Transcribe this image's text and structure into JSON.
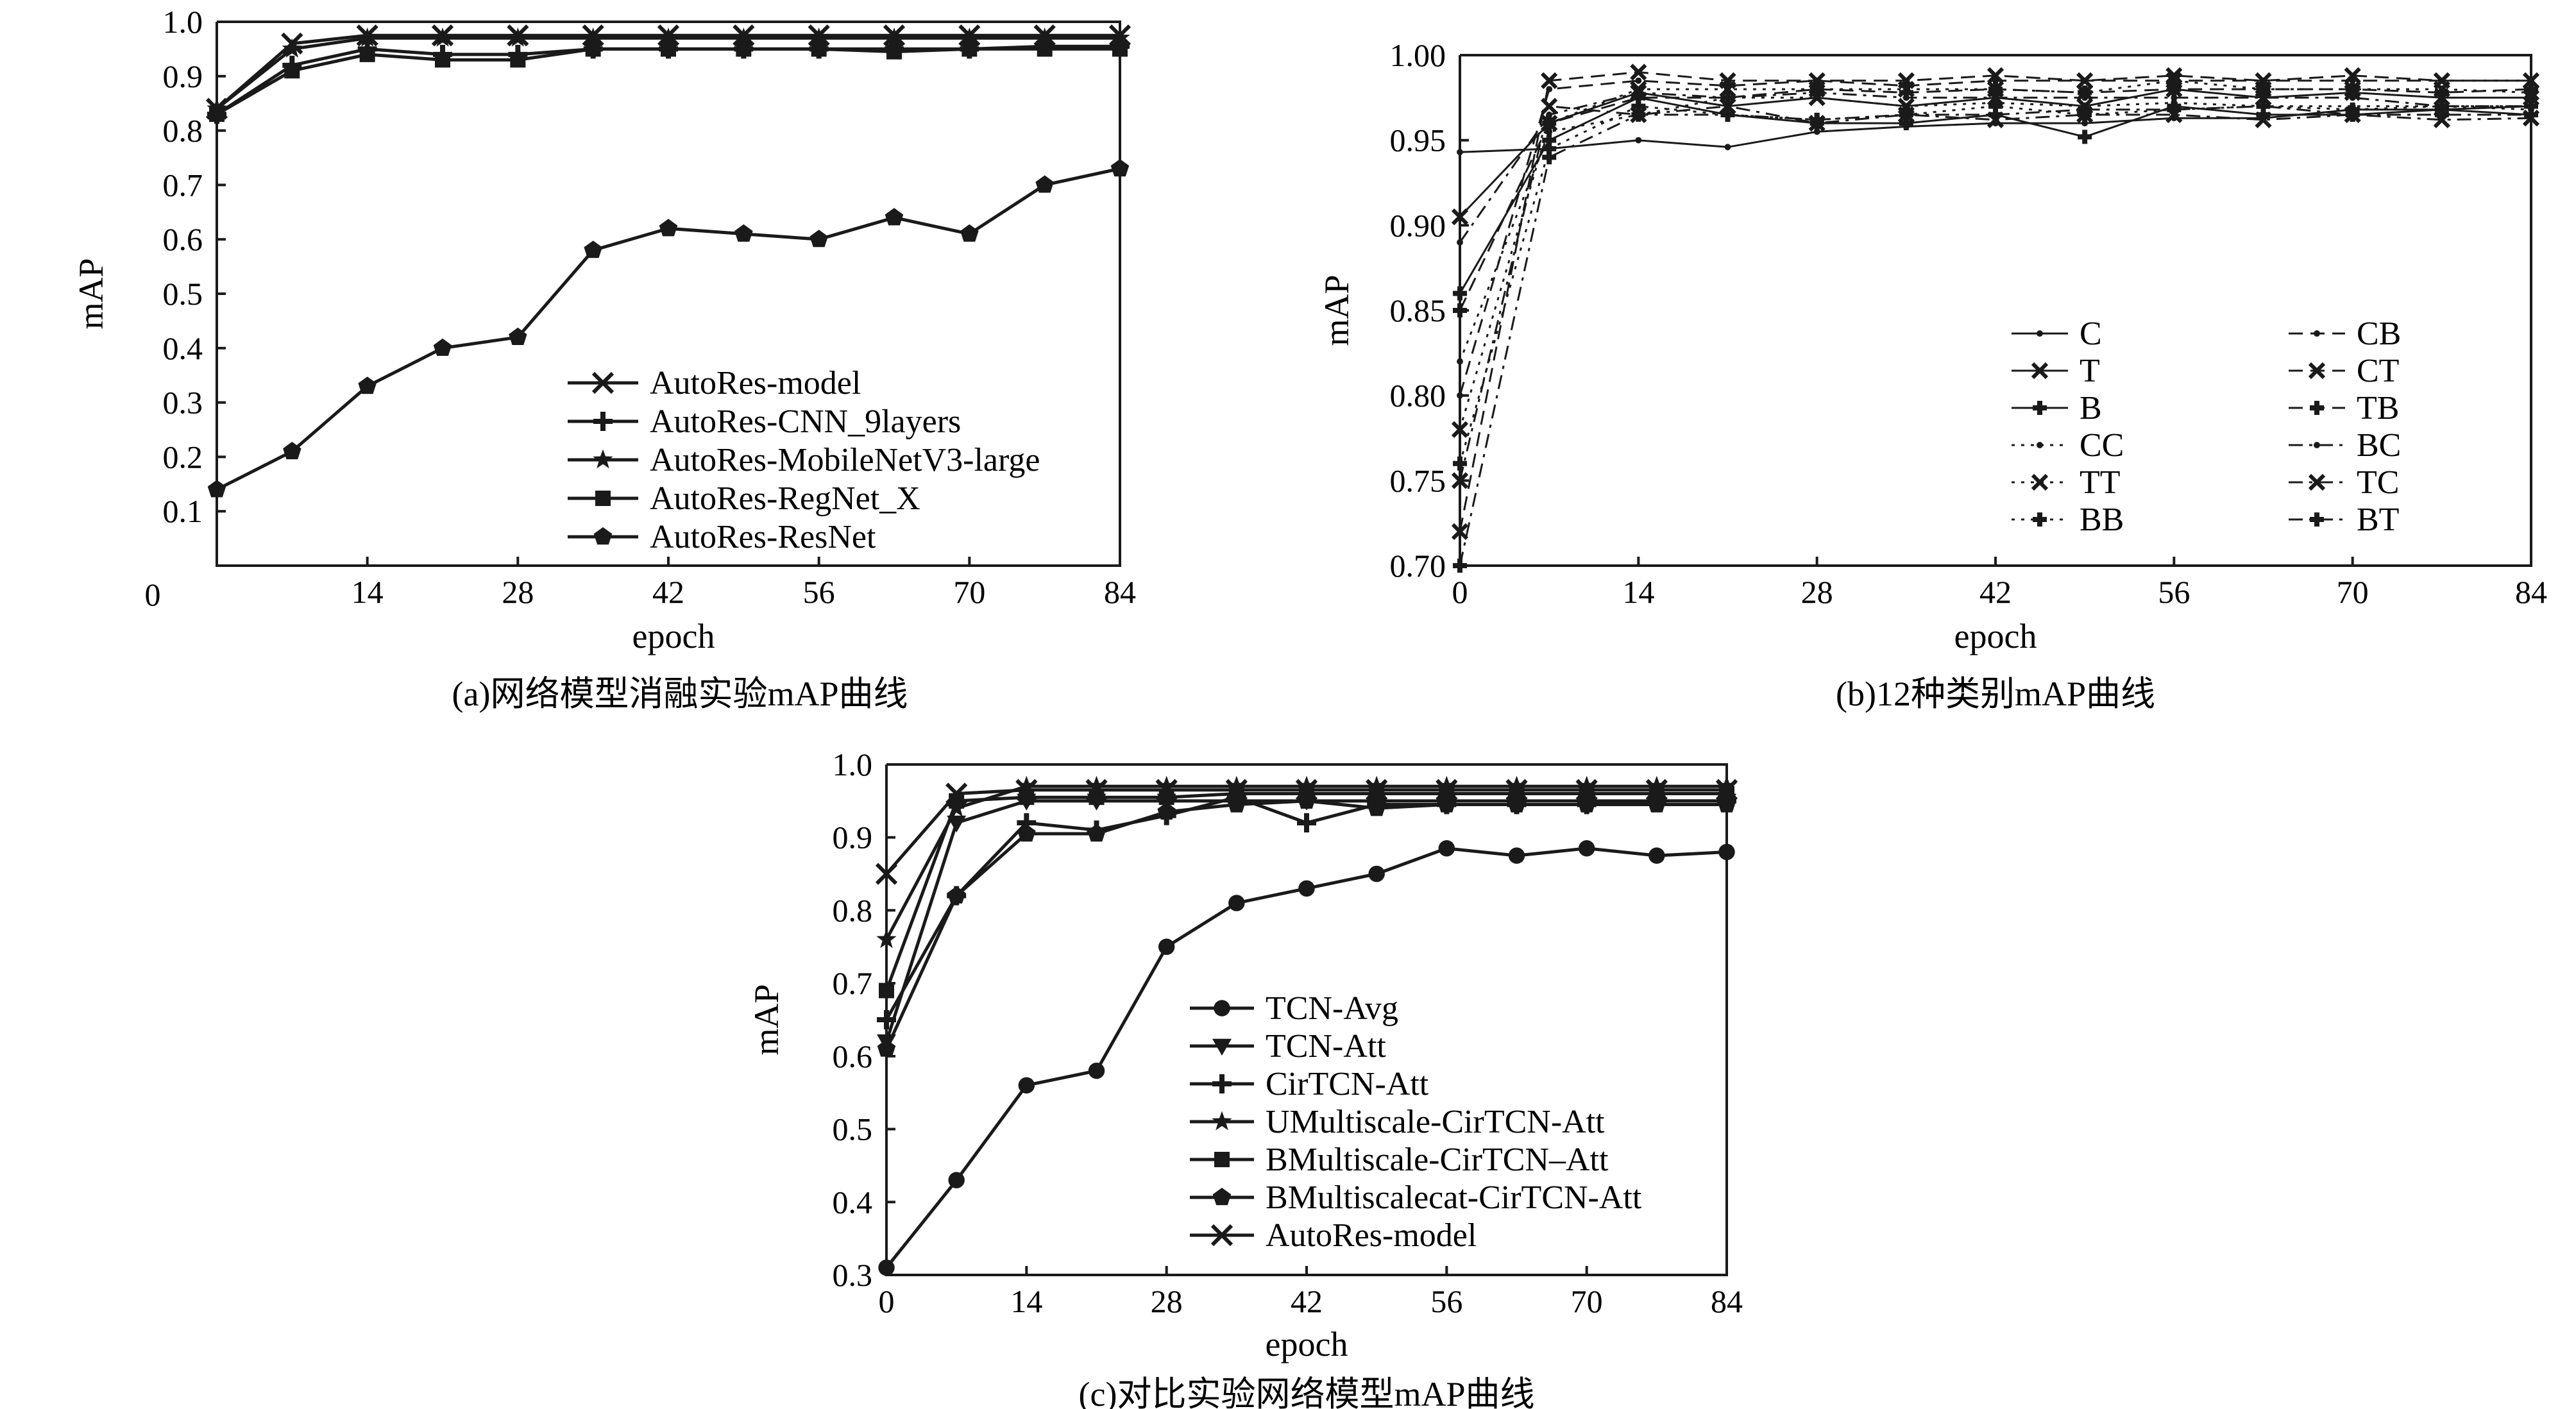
{
  "colors": {
    "ink": "#1a1a1a",
    "background": "#ffffff"
  },
  "chart_data": [
    {
      "id": "a",
      "type": "line",
      "caption": "(a)网络模型消融实验mAP曲线",
      "xlabel": "epoch",
      "ylabel": "mAP",
      "xlim": [
        0,
        84
      ],
      "ylim": [
        0,
        1.0
      ],
      "xticks": [
        0,
        14,
        28,
        42,
        56,
        70,
        84
      ],
      "yticks": [
        0.1,
        0.2,
        0.3,
        0.4,
        0.5,
        0.6,
        0.7,
        0.8,
        0.9,
        1.0
      ],
      "ytick_labels": [
        "0.1",
        "0.2",
        "0.3",
        "0.4",
        "0.5",
        "0.6",
        "0.7",
        "0.8",
        "0.9",
        "1.0"
      ],
      "grid": false,
      "legend_position": "bottom-right",
      "x": [
        0,
        7,
        14,
        21,
        28,
        35,
        42,
        49,
        56,
        63,
        70,
        77,
        84
      ],
      "series": [
        {
          "name": "AutoRes-model",
          "marker": "x",
          "dash": "solid",
          "values": [
            0.84,
            0.96,
            0.975,
            0.975,
            0.975,
            0.975,
            0.975,
            0.975,
            0.975,
            0.975,
            0.975,
            0.975,
            0.975
          ]
        },
        {
          "name": "AutoRes-CNN_9layers",
          "marker": "plus",
          "dash": "solid",
          "values": [
            0.83,
            0.92,
            0.95,
            0.94,
            0.94,
            0.95,
            0.95,
            0.95,
            0.95,
            0.95,
            0.95,
            0.955,
            0.955
          ]
        },
        {
          "name": "AutoRes-MobileNetV3-large",
          "marker": "star",
          "dash": "solid",
          "values": [
            0.84,
            0.95,
            0.97,
            0.97,
            0.97,
            0.97,
            0.97,
            0.97,
            0.97,
            0.97,
            0.97,
            0.97,
            0.97
          ]
        },
        {
          "name": "AutoRes-RegNet_X",
          "marker": "square",
          "dash": "solid",
          "values": [
            0.83,
            0.91,
            0.94,
            0.93,
            0.93,
            0.95,
            0.95,
            0.95,
            0.95,
            0.945,
            0.95,
            0.95,
            0.95
          ]
        },
        {
          "name": "AutoRes-ResNet",
          "marker": "pentagon",
          "dash": "solid",
          "values": [
            0.14,
            0.21,
            0.33,
            0.4,
            0.42,
            0.58,
            0.62,
            0.61,
            0.6,
            0.64,
            0.61,
            0.7,
            0.73
          ]
        }
      ]
    },
    {
      "id": "b",
      "type": "line",
      "caption": "(b)12种类别mAP曲线",
      "xlabel": "epoch",
      "ylabel": "mAP",
      "xlim": [
        0,
        84
      ],
      "ylim": [
        0.7,
        1.0
      ],
      "xticks": [
        0,
        14,
        28,
        42,
        56,
        70,
        84
      ],
      "yticks": [
        0.7,
        0.75,
        0.8,
        0.85,
        0.9,
        0.95,
        1.0
      ],
      "ytick_labels": [
        "0.70",
        "0.75",
        "0.80",
        "0.85",
        "0.90",
        "0.95",
        "1.00"
      ],
      "grid": false,
      "legend_position": "bottom-right",
      "legend_columns": 2,
      "x": [
        0,
        7,
        14,
        21,
        28,
        35,
        42,
        49,
        56,
        63,
        70,
        77,
        84
      ],
      "series": [
        {
          "name": "C",
          "marker": "dot",
          "dash": "solid",
          "values": [
            0.943,
            0.945,
            0.95,
            0.946,
            0.955,
            0.958,
            0.96,
            0.96,
            0.963,
            0.963,
            0.968,
            0.968,
            0.97
          ]
        },
        {
          "name": "T",
          "marker": "x",
          "dash": "solid",
          "values": [
            0.905,
            0.96,
            0.978,
            0.97,
            0.975,
            0.97,
            0.975,
            0.97,
            0.98,
            0.975,
            0.978,
            0.975,
            0.975
          ]
        },
        {
          "name": "B",
          "marker": "plus",
          "dash": "solid",
          "values": [
            0.86,
            0.95,
            0.975,
            0.965,
            0.96,
            0.96,
            0.965,
            0.952,
            0.97,
            0.965,
            0.965,
            0.968,
            0.965
          ]
        },
        {
          "name": "CC",
          "marker": "dot",
          "dash": "dotted",
          "values": [
            0.82,
            0.955,
            0.965,
            0.975,
            0.975,
            0.97,
            0.972,
            0.97,
            0.972,
            0.97,
            0.97,
            0.97,
            0.968
          ]
        },
        {
          "name": "TT",
          "marker": "x",
          "dash": "dotted",
          "values": [
            0.78,
            0.96,
            0.98,
            0.98,
            0.98,
            0.98,
            0.98,
            0.978,
            0.985,
            0.98,
            0.98,
            0.98,
            0.978
          ]
        },
        {
          "name": "BB",
          "marker": "plus",
          "dash": "dotted",
          "values": [
            0.76,
            0.945,
            0.97,
            0.965,
            0.962,
            0.965,
            0.97,
            0.965,
            0.968,
            0.97,
            0.968,
            0.97,
            0.97
          ]
        },
        {
          "name": "CB",
          "marker": "dot",
          "dash": "dashed",
          "values": [
            0.8,
            0.98,
            0.985,
            0.982,
            0.985,
            0.982,
            0.985,
            0.985,
            0.985,
            0.985,
            0.985,
            0.985,
            0.985
          ]
        },
        {
          "name": "CT",
          "marker": "x",
          "dash": "dashed",
          "values": [
            0.72,
            0.985,
            0.99,
            0.985,
            0.985,
            0.985,
            0.988,
            0.985,
            0.988,
            0.985,
            0.988,
            0.985,
            0.985
          ]
        },
        {
          "name": "TB",
          "marker": "plus",
          "dash": "dashed",
          "values": [
            0.85,
            0.96,
            0.975,
            0.975,
            0.98,
            0.978,
            0.98,
            0.978,
            0.98,
            0.98,
            0.98,
            0.978,
            0.98
          ]
        },
        {
          "name": "BC",
          "marker": "dot",
          "dash": "dashdot",
          "values": [
            0.89,
            0.965,
            0.978,
            0.975,
            0.978,
            0.975,
            0.975,
            0.975,
            0.975,
            0.975,
            0.975,
            0.97,
            0.97
          ]
        },
        {
          "name": "TC",
          "marker": "x",
          "dash": "dashdot",
          "values": [
            0.75,
            0.97,
            0.965,
            0.97,
            0.96,
            0.965,
            0.962,
            0.965,
            0.965,
            0.962,
            0.965,
            0.962,
            0.963
          ]
        },
        {
          "name": "BT",
          "marker": "plus",
          "dash": "dashdot",
          "values": [
            0.7,
            0.94,
            0.965,
            0.965,
            0.962,
            0.965,
            0.965,
            0.968,
            0.968,
            0.97,
            0.965,
            0.965,
            0.965
          ]
        }
      ]
    },
    {
      "id": "c",
      "type": "line",
      "caption": "(c)对比实验网络模型mAP曲线",
      "xlabel": "epoch",
      "ylabel": "mAP",
      "xlim": [
        0,
        84
      ],
      "ylim": [
        0.3,
        1.0
      ],
      "xticks": [
        0,
        14,
        28,
        42,
        56,
        70,
        84
      ],
      "yticks": [
        0.3,
        0.4,
        0.5,
        0.6,
        0.7,
        0.8,
        0.9,
        1.0
      ],
      "ytick_labels": [
        "0.3",
        "0.4",
        "0.5",
        "0.6",
        "0.7",
        "0.8",
        "0.9",
        "1.0"
      ],
      "grid": false,
      "legend_position": "bottom-center",
      "x": [
        0,
        7,
        14,
        21,
        28,
        35,
        42,
        49,
        56,
        63,
        70,
        77,
        84
      ],
      "series": [
        {
          "name": "TCN-Avg",
          "marker": "circle",
          "dash": "solid",
          "values": [
            0.31,
            0.43,
            0.56,
            0.58,
            0.75,
            0.81,
            0.83,
            0.85,
            0.885,
            0.875,
            0.885,
            0.875,
            0.88
          ]
        },
        {
          "name": "TCN-Att",
          "marker": "triangle-down",
          "dash": "solid",
          "values": [
            0.62,
            0.92,
            0.95,
            0.95,
            0.95,
            0.95,
            0.95,
            0.95,
            0.95,
            0.95,
            0.95,
            0.95,
            0.95
          ]
        },
        {
          "name": "CirTCN-Att",
          "marker": "plus",
          "dash": "solid",
          "values": [
            0.65,
            0.82,
            0.92,
            0.91,
            0.93,
            0.955,
            0.92,
            0.945,
            0.945,
            0.945,
            0.945,
            0.95,
            0.95
          ]
        },
        {
          "name": "UMultiscale-CirTCN-Att",
          "marker": "star",
          "dash": "solid",
          "values": [
            0.76,
            0.94,
            0.97,
            0.97,
            0.97,
            0.97,
            0.97,
            0.97,
            0.97,
            0.97,
            0.97,
            0.97,
            0.97
          ]
        },
        {
          "name": "BMultiscale-CirTCN–Att",
          "marker": "square",
          "dash": "solid",
          "values": [
            0.69,
            0.95,
            0.955,
            0.955,
            0.955,
            0.96,
            0.96,
            0.96,
            0.96,
            0.96,
            0.96,
            0.96,
            0.96
          ]
        },
        {
          "name": "BMultiscalecat-CirTCN-Att",
          "marker": "pentagon",
          "dash": "solid",
          "values": [
            0.61,
            0.82,
            0.905,
            0.905,
            0.935,
            0.945,
            0.95,
            0.94,
            0.945,
            0.945,
            0.945,
            0.945,
            0.945
          ]
        },
        {
          "name": "AutoRes-model",
          "marker": "x",
          "dash": "solid",
          "values": [
            0.85,
            0.96,
            0.965,
            0.965,
            0.965,
            0.965,
            0.965,
            0.965,
            0.965,
            0.965,
            0.965,
            0.965,
            0.965
          ]
        }
      ]
    }
  ]
}
